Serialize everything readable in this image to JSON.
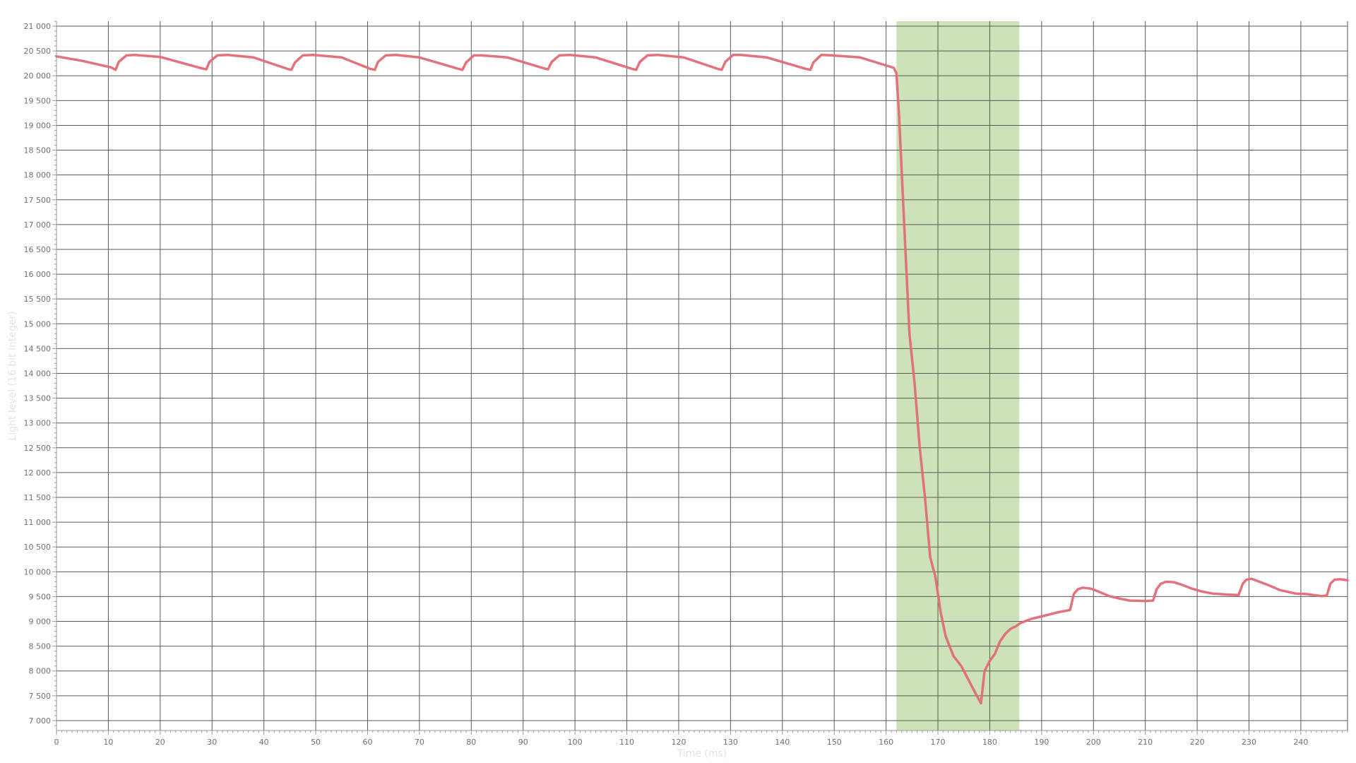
{
  "chart_data": {
    "type": "line",
    "title": "",
    "xlabel": "Time (ms)",
    "ylabel": "Light level (16 bit integer)",
    "xlim": [
      0,
      249
    ],
    "ylim": [
      6800,
      21100
    ],
    "x_ticks": [
      0,
      10,
      20,
      30,
      40,
      50,
      60,
      70,
      80,
      90,
      100,
      110,
      120,
      130,
      140,
      150,
      160,
      170,
      180,
      190,
      200,
      210,
      220,
      230,
      240
    ],
    "x_tick_labels": [
      "0",
      "10",
      "20",
      "30",
      "40",
      "50",
      "60",
      "70",
      "80",
      "90",
      "100",
      "110",
      "120",
      "130",
      "140",
      "150",
      "160",
      "170",
      "180",
      "190",
      "200",
      "210",
      "220",
      "230",
      "240"
    ],
    "y_ticks": [
      7000,
      7500,
      8000,
      8500,
      9000,
      9500,
      10000,
      10500,
      11000,
      11500,
      12000,
      12500,
      13000,
      13500,
      14000,
      14500,
      15000,
      15500,
      16000,
      16500,
      17000,
      17500,
      18000,
      18500,
      19000,
      19500,
      20000,
      20500,
      21000
    ],
    "y_tick_labels": [
      "7 000",
      "7 500",
      "8 000",
      "8 500",
      "9 000",
      "9 500",
      "10 000",
      "10 500",
      "11 000",
      "11 500",
      "12 000",
      "12 500",
      "13 000",
      "13 500",
      "14 000",
      "14 500",
      "15 000",
      "15 500",
      "16 000",
      "16 500",
      "17 000",
      "17 500",
      "18 000",
      "18 500",
      "19 000",
      "19 500",
      "20 000",
      "20 500",
      "21 000"
    ],
    "grid": true,
    "legend": "none",
    "highlight_region": {
      "x_start": 162,
      "x_end": 185.7,
      "color": "#cde2b8"
    },
    "series": [
      {
        "color": "#e06c75",
        "x": [
          0,
          5,
          10.5,
          11.4,
          12,
          13.5,
          15,
          20,
          28,
          28.9,
          29.5,
          31,
          33,
          38,
          44.5,
          45.3,
          46,
          47.5,
          49.5,
          55,
          60.5,
          61.4,
          62,
          63.5,
          65.5,
          70,
          77.5,
          78.3,
          79,
          80.5,
          82,
          87,
          94,
          94.8,
          95.5,
          97,
          99,
          104,
          111,
          111.8,
          112.5,
          114,
          116,
          121,
          127.5,
          128.3,
          129,
          130.5,
          132,
          137,
          144.5,
          145.4,
          146,
          147.5,
          149.5,
          155,
          161.5,
          162,
          162.5,
          163.5,
          164.5,
          165.5,
          166.5,
          167.5,
          168.5,
          169.5,
          170.5,
          171.5,
          173,
          174.5,
          176,
          177.5,
          178.3,
          179,
          180,
          181,
          182,
          183,
          184,
          185,
          186,
          188,
          190,
          193,
          195.5,
          196.2,
          197,
          198,
          199.5,
          201,
          203,
          205,
          207,
          210,
          211.5,
          212.2,
          213,
          214,
          215.5,
          217,
          219,
          221,
          223,
          226,
          228,
          228.8,
          229.5,
          230.5,
          232,
          234,
          236,
          239,
          241,
          244,
          245,
          245.7,
          246.5,
          247.5,
          249
        ],
        "y": [
          20390,
          20300,
          20170,
          20120,
          20280,
          20410,
          20420,
          20380,
          20150,
          20130,
          20280,
          20410,
          20420,
          20370,
          20140,
          20120,
          20270,
          20410,
          20420,
          20370,
          20140,
          20120,
          20280,
          20410,
          20420,
          20370,
          20140,
          20120,
          20270,
          20410,
          20410,
          20370,
          20150,
          20130,
          20280,
          20410,
          20420,
          20370,
          20140,
          20120,
          20280,
          20410,
          20420,
          20370,
          20140,
          20120,
          20280,
          20420,
          20420,
          20370,
          20140,
          20120,
          20270,
          20420,
          20410,
          20370,
          20160,
          20050,
          19200,
          17000,
          14800,
          13800,
          12500,
          11500,
          10300,
          9900,
          9200,
          8700,
          8300,
          8100,
          7800,
          7500,
          7350,
          8000,
          8200,
          8350,
          8600,
          8750,
          8850,
          8900,
          8970,
          9050,
          9100,
          9180,
          9230,
          9550,
          9650,
          9680,
          9660,
          9600,
          9510,
          9460,
          9420,
          9410,
          9420,
          9650,
          9760,
          9800,
          9790,
          9740,
          9660,
          9600,
          9560,
          9540,
          9530,
          9760,
          9840,
          9860,
          9800,
          9720,
          9630,
          9560,
          9550,
          9510,
          9520,
          9760,
          9840,
          9850,
          9830
        ]
      }
    ]
  }
}
